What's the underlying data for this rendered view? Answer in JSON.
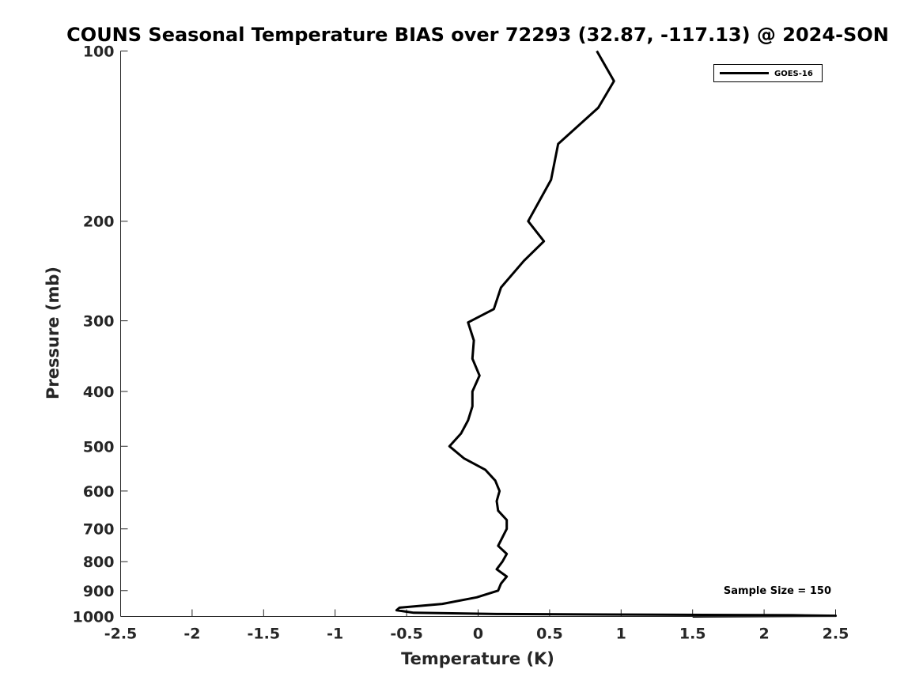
{
  "chart_data": {
    "type": "line",
    "title": "COUNS Seasonal Temperature BIAS over 72293 (32.87, -117.13) @ 2024-SON",
    "xlabel": "Temperature (K)",
    "ylabel": "Pressure (mb)",
    "xlim": [
      -2.5,
      2.5
    ],
    "ylim": [
      100,
      1000
    ],
    "y_scale": "log",
    "y_reversed": true,
    "x_ticks": [
      "-2.5",
      "-2",
      "-1.5",
      "-1",
      "-0.5",
      "0",
      "0.5",
      "1",
      "1.5",
      "2",
      "2.5"
    ],
    "y_ticks": [
      "100",
      "200",
      "300",
      "400",
      "500",
      "600",
      "700",
      "800",
      "900",
      "1000"
    ],
    "grid": false,
    "legend_position": "top-right",
    "annotation": "Sample Size = 150",
    "series": [
      {
        "name": "GOES-16",
        "color": "#000000",
        "x": [
          0.83,
          0.95,
          0.84,
          0.56,
          0.51,
          0.35,
          0.46,
          0.32,
          0.16,
          0.11,
          -0.07,
          -0.03,
          -0.04,
          0.01,
          -0.04,
          -0.04,
          -0.07,
          -0.12,
          -0.2,
          -0.1,
          0.05,
          0.12,
          0.15,
          0.13,
          0.14,
          0.2,
          0.2,
          0.17,
          0.14,
          0.2,
          0.17,
          0.13,
          0.2,
          0.16,
          0.14,
          -0.01,
          -0.25,
          -0.55,
          -0.57,
          -0.45,
          0.13,
          1.25,
          2.2,
          2.5,
          1.5
        ],
        "y": [
          100,
          113,
          126,
          146,
          169,
          200,
          217,
          235,
          262,
          286,
          302,
          325,
          350,
          375,
          400,
          425,
          450,
          475,
          500,
          525,
          550,
          575,
          600,
          625,
          650,
          675,
          700,
          725,
          750,
          775,
          800,
          825,
          850,
          875,
          900,
          925,
          950,
          965,
          975,
          985,
          990,
          993,
          995,
          997,
          1000
        ]
      }
    ]
  }
}
